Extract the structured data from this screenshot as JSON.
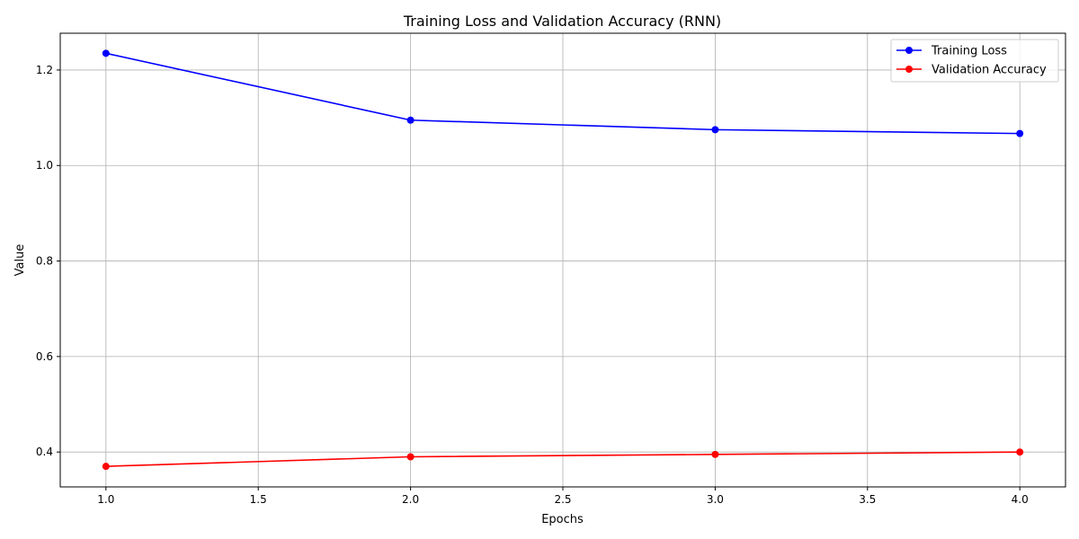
{
  "chart_data": {
    "type": "line",
    "title": "Training Loss and Validation Accuracy (RNN)",
    "xlabel": "Epochs",
    "ylabel": "Value",
    "x": [
      1,
      2,
      3,
      4
    ],
    "series": [
      {
        "name": "Training Loss",
        "values": [
          1.235,
          1.095,
          1.075,
          1.067
        ],
        "color": "#0000ff",
        "marker": "circle"
      },
      {
        "name": "Validation Accuracy",
        "values": [
          0.37,
          0.39,
          0.395,
          0.4
        ],
        "color": "#ff0000",
        "marker": "circle"
      }
    ],
    "xlim": [
      0.85,
      4.15
    ],
    "ylim": [
      0.327,
      1.277
    ],
    "xticks": [
      1.0,
      1.5,
      2.0,
      2.5,
      3.0,
      3.5,
      4.0
    ],
    "xtick_labels": [
      "1.0",
      "1.5",
      "2.0",
      "2.5",
      "3.0",
      "3.5",
      "4.0"
    ],
    "yticks": [
      0.4,
      0.6,
      0.8,
      1.0,
      1.2
    ],
    "ytick_labels": [
      "0.4",
      "0.6",
      "0.8",
      "1.0",
      "1.2"
    ],
    "grid": true,
    "grid_color": "#b0b0b0",
    "legend": "top-right"
  }
}
